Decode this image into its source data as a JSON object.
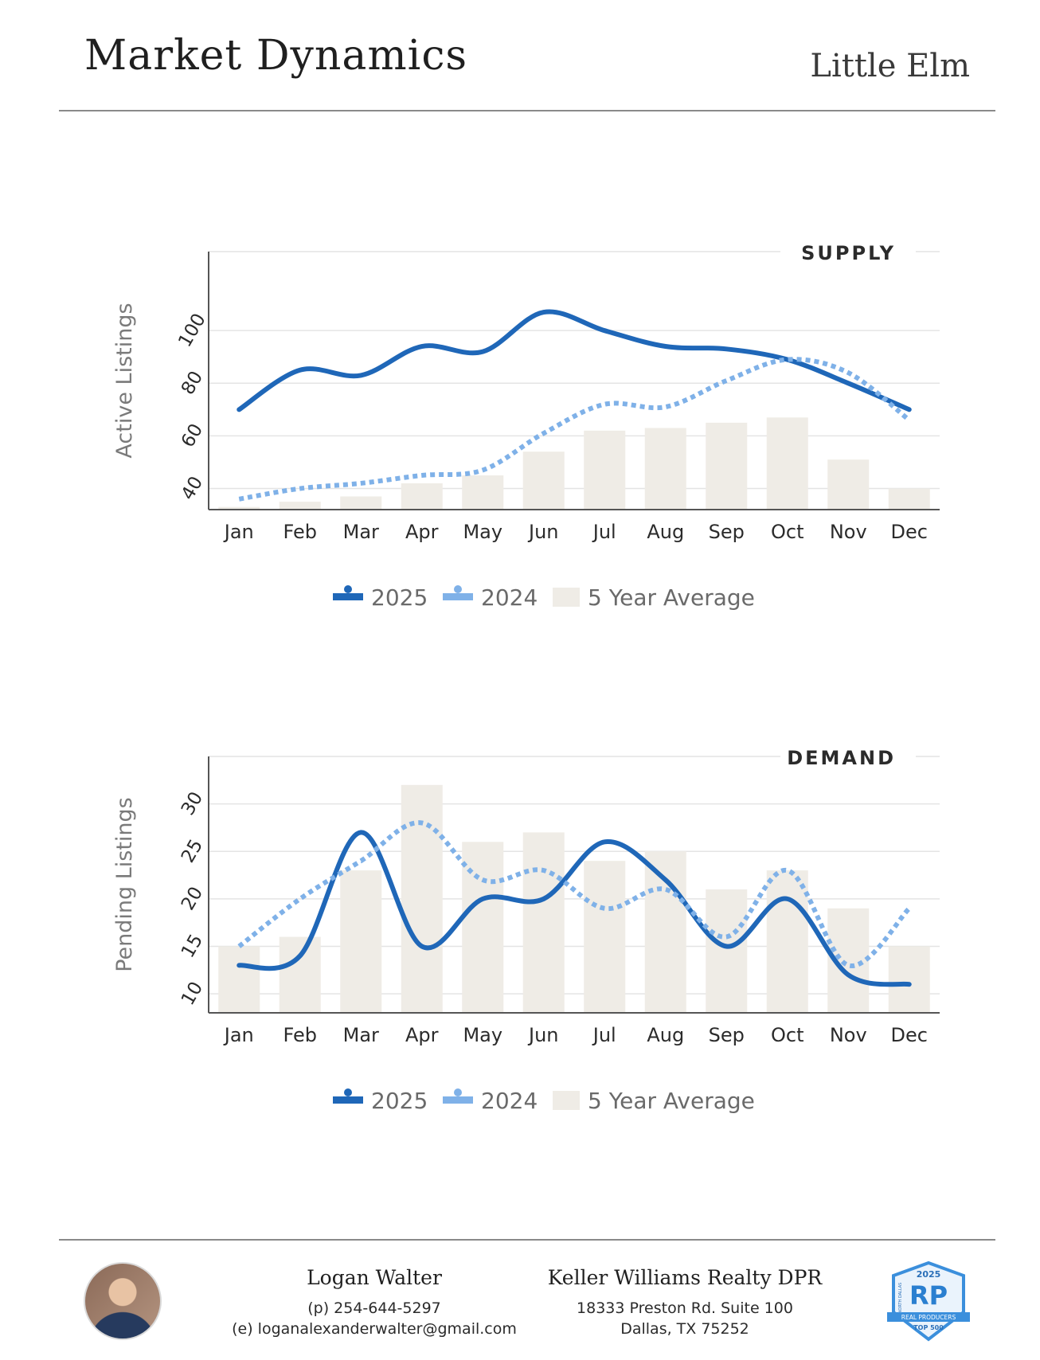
{
  "header": {
    "title": "Market Dynamics",
    "city": "Little Elm"
  },
  "legend": {
    "series_2025": "2025",
    "series_2024": "2024",
    "average": "5 Year Average"
  },
  "colors": {
    "line_2025": "#1f67b8",
    "line_2024": "#7fb1e8",
    "bars": "#efece6",
    "grid": "#e4e4e4",
    "axis": "#555555"
  },
  "chart_data": [
    {
      "type": "bar",
      "section_label": "SUPPLY",
      "ylabel": "Active Listings",
      "categories": [
        "Jan",
        "Feb",
        "Mar",
        "Apr",
        "May",
        "Jun",
        "Jul",
        "Aug",
        "Sep",
        "Oct",
        "Nov",
        "Dec"
      ],
      "yticks": [
        40,
        60,
        80,
        100
      ],
      "ylim": [
        32,
        130
      ],
      "series": [
        {
          "name": "5 Year Average",
          "kind": "bar",
          "values": [
            33,
            35,
            37,
            42,
            45,
            54,
            62,
            63,
            65,
            67,
            51,
            40
          ]
        },
        {
          "name": "2025",
          "kind": "line",
          "values": [
            70,
            85,
            83,
            94,
            92,
            107,
            100,
            94,
            93,
            89,
            80,
            70
          ]
        },
        {
          "name": "2024",
          "kind": "dotted-line",
          "values": [
            36,
            40,
            42,
            45,
            47,
            61,
            72,
            71,
            81,
            89,
            84,
            66
          ]
        }
      ]
    },
    {
      "type": "bar",
      "section_label": "DEMAND",
      "ylabel": "Pending Listings",
      "categories": [
        "Jan",
        "Feb",
        "Mar",
        "Apr",
        "May",
        "Jun",
        "Jul",
        "Aug",
        "Sep",
        "Oct",
        "Nov",
        "Dec"
      ],
      "yticks": [
        10,
        15,
        20,
        25,
        30
      ],
      "ylim": [
        8,
        35
      ],
      "series": [
        {
          "name": "5 Year Average",
          "kind": "bar",
          "values": [
            15,
            16,
            23,
            32,
            26,
            27,
            24,
            25,
            21,
            23,
            19,
            15
          ]
        },
        {
          "name": "2025",
          "kind": "line",
          "values": [
            13,
            14,
            27,
            15,
            20,
            20,
            26,
            22,
            15,
            20,
            12,
            11
          ]
        },
        {
          "name": "2024",
          "kind": "dotted-line",
          "values": [
            15,
            20,
            24,
            28,
            22,
            23,
            19,
            21,
            16,
            23,
            13,
            19
          ]
        }
      ]
    }
  ],
  "footer": {
    "agent_name": "Logan Walter",
    "phone": "(p) 254-644-5297",
    "email": "(e) loganalexanderwalter@gmail.com",
    "company": "Keller Williams Realty DPR",
    "address_line1": "18333 Preston Rd. Suite 100",
    "address_line2": "Dallas, TX 75252",
    "badge": {
      "year": "2025",
      "mark": "RP",
      "line1": "REAL PRODUCERS",
      "line2": "TOP 500",
      "side": "NORTH DALLAS"
    }
  }
}
